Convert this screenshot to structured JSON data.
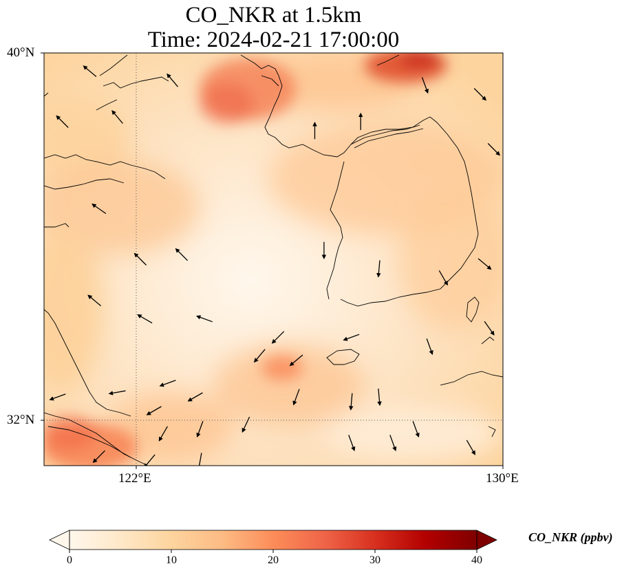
{
  "title_line1": "CO_NKR at 1.5km",
  "title_line2": "Time: 2024-02-21 17:00:00",
  "lat_ticks": [
    {
      "label": "40°N",
      "value": 40
    },
    {
      "label": "32°N",
      "value": 32
    }
  ],
  "lon_ticks": [
    {
      "label": "122°E",
      "value": 122
    },
    {
      "label": "130°E",
      "value": 130
    }
  ],
  "extent": {
    "lon": [
      120,
      130
    ],
    "lat": [
      31,
      40
    ]
  },
  "gridlines": {
    "lon": [
      122
    ],
    "lat": [
      32
    ],
    "style": "dotted"
  },
  "colorbar": {
    "title": "CO_NKR (ppbv)",
    "cmap": "OrRd",
    "vmin": 0,
    "vmax": 40,
    "extend": "both",
    "orientation": "horizontal",
    "ticks": [
      "0",
      "10",
      "20",
      "30",
      "40"
    ],
    "colors": [
      "#fff7ec",
      "#fee8c8",
      "#fdd49e",
      "#fdbb84",
      "#fc8d59",
      "#ef6548",
      "#d7301f",
      "#b30000",
      "#7f0000"
    ]
  },
  "field": {
    "variable": "CO_NKR",
    "units": "ppbv",
    "level": "1.5km",
    "high_regions": [
      {
        "lon": 125.2,
        "lat": 39.3,
        "value": 26
      },
      {
        "lon": 128.5,
        "lat": 39.8,
        "value": 30
      },
      {
        "lon": 120.6,
        "lat": 31.5,
        "value": 24
      },
      {
        "lon": 125.0,
        "lat": 32.6,
        "value": 20
      }
    ]
  },
  "wind_vectors": [
    {
      "lon": 121.0,
      "lat": 39.6,
      "dir": 220
    },
    {
      "lon": 121.6,
      "lat": 38.6,
      "dir": 230
    },
    {
      "lon": 122.8,
      "lat": 39.4,
      "dir": 230
    },
    {
      "lon": 120.4,
      "lat": 38.5,
      "dir": 225
    },
    {
      "lon": 121.2,
      "lat": 36.6,
      "dir": 215
    },
    {
      "lon": 122.1,
      "lat": 35.5,
      "dir": 225
    },
    {
      "lon": 123.0,
      "lat": 35.6,
      "dir": 225
    },
    {
      "lon": 121.1,
      "lat": 34.6,
      "dir": 220
    },
    {
      "lon": 122.2,
      "lat": 34.2,
      "dir": 210
    },
    {
      "lon": 123.5,
      "lat": 34.2,
      "dir": 200
    },
    {
      "lon": 125.1,
      "lat": 33.8,
      "dir": 135
    },
    {
      "lon": 125.5,
      "lat": 33.3,
      "dir": 140
    },
    {
      "lon": 124.7,
      "lat": 33.4,
      "dir": 130
    },
    {
      "lon": 126.7,
      "lat": 33.8,
      "dir": 160
    },
    {
      "lon": 126.1,
      "lat": 35.7,
      "dir": 90
    },
    {
      "lon": 127.3,
      "lat": 35.3,
      "dir": 95
    },
    {
      "lon": 128.7,
      "lat": 35.1,
      "dir": 60
    },
    {
      "lon": 129.7,
      "lat": 34.0,
      "dir": 55
    },
    {
      "lon": 129.6,
      "lat": 35.4,
      "dir": 40
    },
    {
      "lon": 128.4,
      "lat": 33.6,
      "dir": 70
    },
    {
      "lon": 126.7,
      "lat": 32.4,
      "dir": 95
    },
    {
      "lon": 127.3,
      "lat": 32.5,
      "dir": 85
    },
    {
      "lon": 125.5,
      "lat": 32.5,
      "dir": 110
    },
    {
      "lon": 124.4,
      "lat": 31.9,
      "dir": 115
    },
    {
      "lon": 123.4,
      "lat": 31.8,
      "dir": 110
    },
    {
      "lon": 122.6,
      "lat": 31.7,
      "dir": 120
    },
    {
      "lon": 128.1,
      "lat": 31.8,
      "dir": 70
    },
    {
      "lon": 129.3,
      "lat": 31.4,
      "dir": 60
    },
    {
      "lon": 127.6,
      "lat": 31.5,
      "dir": 70
    },
    {
      "lon": 126.7,
      "lat": 31.5,
      "dir": 70
    },
    {
      "lon": 121.2,
      "lat": 31.2,
      "dir": 135
    },
    {
      "lon": 122.3,
      "lat": 31.1,
      "dir": 130
    },
    {
      "lon": 123.4,
      "lat": 31.1,
      "dir": 100
    },
    {
      "lon": 125.9,
      "lat": 38.3,
      "dir": 270
    },
    {
      "lon": 126.9,
      "lat": 38.5,
      "dir": 270
    },
    {
      "lon": 128.3,
      "lat": 39.3,
      "dir": 70
    },
    {
      "lon": 129.5,
      "lat": 39.1,
      "dir": 45
    },
    {
      "lon": 129.8,
      "lat": 37.9,
      "dir": 45
    },
    {
      "lon": 122.7,
      "lat": 32.8,
      "dir": 160
    },
    {
      "lon": 123.3,
      "lat": 32.5,
      "dir": 150
    },
    {
      "lon": 122.4,
      "lat": 32.2,
      "dir": 150
    },
    {
      "lon": 121.6,
      "lat": 32.6,
      "dir": 170
    },
    {
      "lon": 120.3,
      "lat": 32.5,
      "dir": 160
    }
  ]
}
